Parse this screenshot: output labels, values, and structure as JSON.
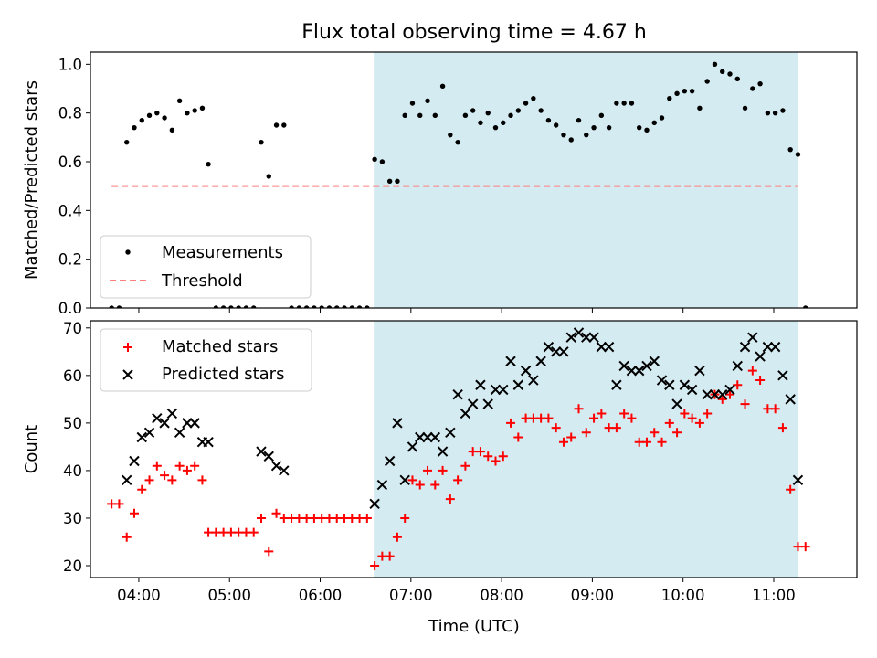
{
  "title": "Flux total observing time = 4.67 h",
  "xlabel": "Time (UTC)",
  "x_ticks": [
    "04:00",
    "05:00",
    "06:00",
    "07:00",
    "08:00",
    "09:00",
    "10:00",
    "11:00"
  ],
  "colors": {
    "span": "#d4ebf1",
    "span_edge": "#a9d3df",
    "measurement": "#000000",
    "threshold": "#ff7f7f",
    "matched": "#ff0000",
    "predicted": "#000000"
  },
  "chart_data": [
    {
      "type": "scatter",
      "ylabel": "Matched/Predicted stars",
      "xlim": [
        "03:28",
        "11:55"
      ],
      "ylim": [
        0,
        1.05
      ],
      "y_ticks": [
        "0.0",
        "0.2",
        "0.4",
        "0.6",
        "0.8",
        "1.0"
      ],
      "highlight_span": [
        "06:36",
        "11:16"
      ],
      "legend": {
        "location": "lower-left",
        "measurements_label": "Measurements",
        "threshold_label": "Threshold"
      },
      "threshold": {
        "value": 0.5,
        "x": [
          "03:42",
          "11:16"
        ]
      },
      "series": [
        {
          "name": "Measurements",
          "marker": "dot",
          "points": [
            [
              "03:42",
              0
            ],
            [
              "03:47",
              0
            ],
            [
              "03:52",
              0.68
            ],
            [
              "03:57",
              0.74
            ],
            [
              "04:02",
              0.77
            ],
            [
              "04:07",
              0.79
            ],
            [
              "04:12",
              0.8
            ],
            [
              "04:17",
              0.78
            ],
            [
              "04:22",
              0.73
            ],
            [
              "04:27",
              0.85
            ],
            [
              "04:32",
              0.8
            ],
            [
              "04:37",
              0.81
            ],
            [
              "04:42",
              0.82
            ],
            [
              "04:46",
              0.59
            ],
            [
              "04:51",
              0
            ],
            [
              "04:56",
              0
            ],
            [
              "05:01",
              0
            ],
            [
              "05:06",
              0
            ],
            [
              "05:11",
              0
            ],
            [
              "05:16",
              0
            ],
            [
              "05:21",
              0.68
            ],
            [
              "05:26",
              0.54
            ],
            [
              "05:31",
              0.75
            ],
            [
              "05:36",
              0.75
            ],
            [
              "05:41",
              0
            ],
            [
              "05:46",
              0
            ],
            [
              "05:51",
              0
            ],
            [
              "05:56",
              0
            ],
            [
              "06:01",
              0
            ],
            [
              "06:06",
              0
            ],
            [
              "06:11",
              0
            ],
            [
              "06:16",
              0
            ],
            [
              "06:21",
              0
            ],
            [
              "06:26",
              0
            ],
            [
              "06:31",
              0
            ],
            [
              "06:36",
              0.61
            ],
            [
              "06:41",
              0.6
            ],
            [
              "06:46",
              0.52
            ],
            [
              "06:51",
              0.52
            ],
            [
              "06:56",
              0.79
            ],
            [
              "07:01",
              0.84
            ],
            [
              "07:06",
              0.79
            ],
            [
              "07:11",
              0.85
            ],
            [
              "07:16",
              0.79
            ],
            [
              "07:21",
              0.91
            ],
            [
              "07:26",
              0.71
            ],
            [
              "07:31",
              0.68
            ],
            [
              "07:36",
              0.79
            ],
            [
              "07:41",
              0.81
            ],
            [
              "07:46",
              0.76
            ],
            [
              "07:51",
              0.8
            ],
            [
              "07:56",
              0.74
            ],
            [
              "08:01",
              0.76
            ],
            [
              "08:06",
              0.79
            ],
            [
              "08:11",
              0.81
            ],
            [
              "08:16",
              0.84
            ],
            [
              "08:21",
              0.86
            ],
            [
              "08:26",
              0.81
            ],
            [
              "08:31",
              0.77
            ],
            [
              "08:36",
              0.75
            ],
            [
              "08:41",
              0.71
            ],
            [
              "08:46",
              0.69
            ],
            [
              "08:51",
              0.77
            ],
            [
              "08:56",
              0.71
            ],
            [
              "09:01",
              0.74
            ],
            [
              "09:06",
              0.79
            ],
            [
              "09:11",
              0.74
            ],
            [
              "09:16",
              0.84
            ],
            [
              "09:21",
              0.84
            ],
            [
              "09:26",
              0.84
            ],
            [
              "09:31",
              0.74
            ],
            [
              "09:36",
              0.73
            ],
            [
              "09:41",
              0.76
            ],
            [
              "09:46",
              0.78
            ],
            [
              "09:51",
              0.86
            ],
            [
              "09:56",
              0.88
            ],
            [
              "10:01",
              0.89
            ],
            [
              "10:06",
              0.89
            ],
            [
              "10:11",
              0.82
            ],
            [
              "10:16",
              0.93
            ],
            [
              "10:21",
              1.0
            ],
            [
              "10:26",
              0.97
            ],
            [
              "10:31",
              0.96
            ],
            [
              "10:36",
              0.94
            ],
            [
              "10:41",
              0.82
            ],
            [
              "10:46",
              0.9
            ],
            [
              "10:51",
              0.92
            ],
            [
              "10:56",
              0.8
            ],
            [
              "11:01",
              0.8
            ],
            [
              "11:06",
              0.81
            ],
            [
              "11:11",
              0.65
            ],
            [
              "11:16",
              0.63
            ],
            [
              "11:21",
              0
            ]
          ]
        }
      ]
    },
    {
      "type": "scatter",
      "ylabel": "Count",
      "xlim": [
        "03:28",
        "11:55"
      ],
      "ylim": [
        17.5,
        71.5
      ],
      "y_ticks": [
        "20",
        "30",
        "40",
        "50",
        "60",
        "70"
      ],
      "highlight_span": [
        "06:36",
        "11:16"
      ],
      "legend": {
        "location": "upper-left",
        "matched_label": "Matched stars",
        "predicted_label": "Predicted stars"
      },
      "series": [
        {
          "name": "Matched stars",
          "marker": "plus",
          "points": [
            [
              "03:42",
              33
            ],
            [
              "03:47",
              33
            ],
            [
              "03:52",
              26
            ],
            [
              "03:57",
              31
            ],
            [
              "04:02",
              36
            ],
            [
              "04:07",
              38
            ],
            [
              "04:12",
              41
            ],
            [
              "04:17",
              39
            ],
            [
              "04:22",
              38
            ],
            [
              "04:27",
              41
            ],
            [
              "04:32",
              40
            ],
            [
              "04:37",
              41
            ],
            [
              "04:42",
              38
            ],
            [
              "04:46",
              27
            ],
            [
              "04:51",
              27
            ],
            [
              "04:56",
              27
            ],
            [
              "05:01",
              27
            ],
            [
              "05:06",
              27
            ],
            [
              "05:11",
              27
            ],
            [
              "05:16",
              27
            ],
            [
              "05:21",
              30
            ],
            [
              "05:26",
              23
            ],
            [
              "05:31",
              31
            ],
            [
              "05:36",
              30
            ],
            [
              "05:41",
              30
            ],
            [
              "05:46",
              30
            ],
            [
              "05:51",
              30
            ],
            [
              "05:56",
              30
            ],
            [
              "06:01",
              30
            ],
            [
              "06:06",
              30
            ],
            [
              "06:11",
              30
            ],
            [
              "06:16",
              30
            ],
            [
              "06:21",
              30
            ],
            [
              "06:26",
              30
            ],
            [
              "06:31",
              30
            ],
            [
              "06:36",
              20
            ],
            [
              "06:41",
              22
            ],
            [
              "06:46",
              22
            ],
            [
              "06:51",
              26
            ],
            [
              "06:56",
              30
            ],
            [
              "07:01",
              38
            ],
            [
              "07:06",
              37
            ],
            [
              "07:11",
              40
            ],
            [
              "07:16",
              37
            ],
            [
              "07:21",
              40
            ],
            [
              "07:26",
              34
            ],
            [
              "07:31",
              38
            ],
            [
              "07:36",
              41
            ],
            [
              "07:41",
              44
            ],
            [
              "07:46",
              44
            ],
            [
              "07:51",
              43
            ],
            [
              "07:56",
              42
            ],
            [
              "08:01",
              43
            ],
            [
              "08:06",
              50
            ],
            [
              "08:11",
              47
            ],
            [
              "08:16",
              51
            ],
            [
              "08:21",
              51
            ],
            [
              "08:26",
              51
            ],
            [
              "08:31",
              51
            ],
            [
              "08:36",
              49
            ],
            [
              "08:41",
              46
            ],
            [
              "08:46",
              47
            ],
            [
              "08:51",
              53
            ],
            [
              "08:56",
              48
            ],
            [
              "09:01",
              51
            ],
            [
              "09:06",
              52
            ],
            [
              "09:11",
              49
            ],
            [
              "09:16",
              49
            ],
            [
              "09:21",
              52
            ],
            [
              "09:26",
              51
            ],
            [
              "09:31",
              46
            ],
            [
              "09:36",
              46
            ],
            [
              "09:41",
              48
            ],
            [
              "09:46",
              46
            ],
            [
              "09:51",
              50
            ],
            [
              "09:56",
              48
            ],
            [
              "10:01",
              52
            ],
            [
              "10:06",
              51
            ],
            [
              "10:11",
              50
            ],
            [
              "10:16",
              52
            ],
            [
              "10:21",
              56
            ],
            [
              "10:26",
              55
            ],
            [
              "10:31",
              56
            ],
            [
              "10:36",
              58
            ],
            [
              "10:41",
              54
            ],
            [
              "10:46",
              61
            ],
            [
              "10:51",
              59
            ],
            [
              "10:56",
              53
            ],
            [
              "11:01",
              53
            ],
            [
              "11:06",
              49
            ],
            [
              "11:11",
              36
            ],
            [
              "11:16",
              24
            ],
            [
              "11:21",
              24
            ]
          ]
        },
        {
          "name": "Predicted stars",
          "marker": "x",
          "points": [
            [
              "03:52",
              38
            ],
            [
              "03:57",
              42
            ],
            [
              "04:02",
              47
            ],
            [
              "04:07",
              48
            ],
            [
              "04:12",
              51
            ],
            [
              "04:17",
              50
            ],
            [
              "04:22",
              52
            ],
            [
              "04:27",
              48
            ],
            [
              "04:32",
              50
            ],
            [
              "04:37",
              50
            ],
            [
              "04:42",
              46
            ],
            [
              "04:46",
              46
            ],
            [
              "05:21",
              44
            ],
            [
              "05:26",
              43
            ],
            [
              "05:31",
              41
            ],
            [
              "05:36",
              40
            ],
            [
              "06:36",
              33
            ],
            [
              "06:41",
              37
            ],
            [
              "06:46",
              42
            ],
            [
              "06:51",
              50
            ],
            [
              "06:56",
              38
            ],
            [
              "07:01",
              45
            ],
            [
              "07:06",
              47
            ],
            [
              "07:11",
              47
            ],
            [
              "07:16",
              47
            ],
            [
              "07:21",
              44
            ],
            [
              "07:26",
              48
            ],
            [
              "07:31",
              56
            ],
            [
              "07:36",
              52
            ],
            [
              "07:41",
              54
            ],
            [
              "07:46",
              58
            ],
            [
              "07:51",
              54
            ],
            [
              "07:56",
              57
            ],
            [
              "08:01",
              57
            ],
            [
              "08:06",
              63
            ],
            [
              "08:11",
              58
            ],
            [
              "08:16",
              61
            ],
            [
              "08:21",
              59
            ],
            [
              "08:26",
              63
            ],
            [
              "08:31",
              66
            ],
            [
              "08:36",
              65
            ],
            [
              "08:41",
              65
            ],
            [
              "08:46",
              68
            ],
            [
              "08:51",
              69
            ],
            [
              "08:56",
              68
            ],
            [
              "09:01",
              68
            ],
            [
              "09:06",
              66
            ],
            [
              "09:11",
              66
            ],
            [
              "09:16",
              58
            ],
            [
              "09:21",
              62
            ],
            [
              "09:26",
              61
            ],
            [
              "09:31",
              61
            ],
            [
              "09:36",
              62
            ],
            [
              "09:41",
              63
            ],
            [
              "09:46",
              59
            ],
            [
              "09:51",
              58
            ],
            [
              "09:56",
              54
            ],
            [
              "10:01",
              58
            ],
            [
              "10:06",
              57
            ],
            [
              "10:11",
              61
            ],
            [
              "10:16",
              56
            ],
            [
              "10:21",
              56
            ],
            [
              "10:26",
              56
            ],
            [
              "10:31",
              57
            ],
            [
              "10:36",
              62
            ],
            [
              "10:41",
              66
            ],
            [
              "10:46",
              68
            ],
            [
              "10:51",
              64
            ],
            [
              "10:56",
              66
            ],
            [
              "11:01",
              66
            ],
            [
              "11:06",
              60
            ],
            [
              "11:11",
              55
            ],
            [
              "11:16",
              38
            ]
          ]
        }
      ]
    }
  ]
}
